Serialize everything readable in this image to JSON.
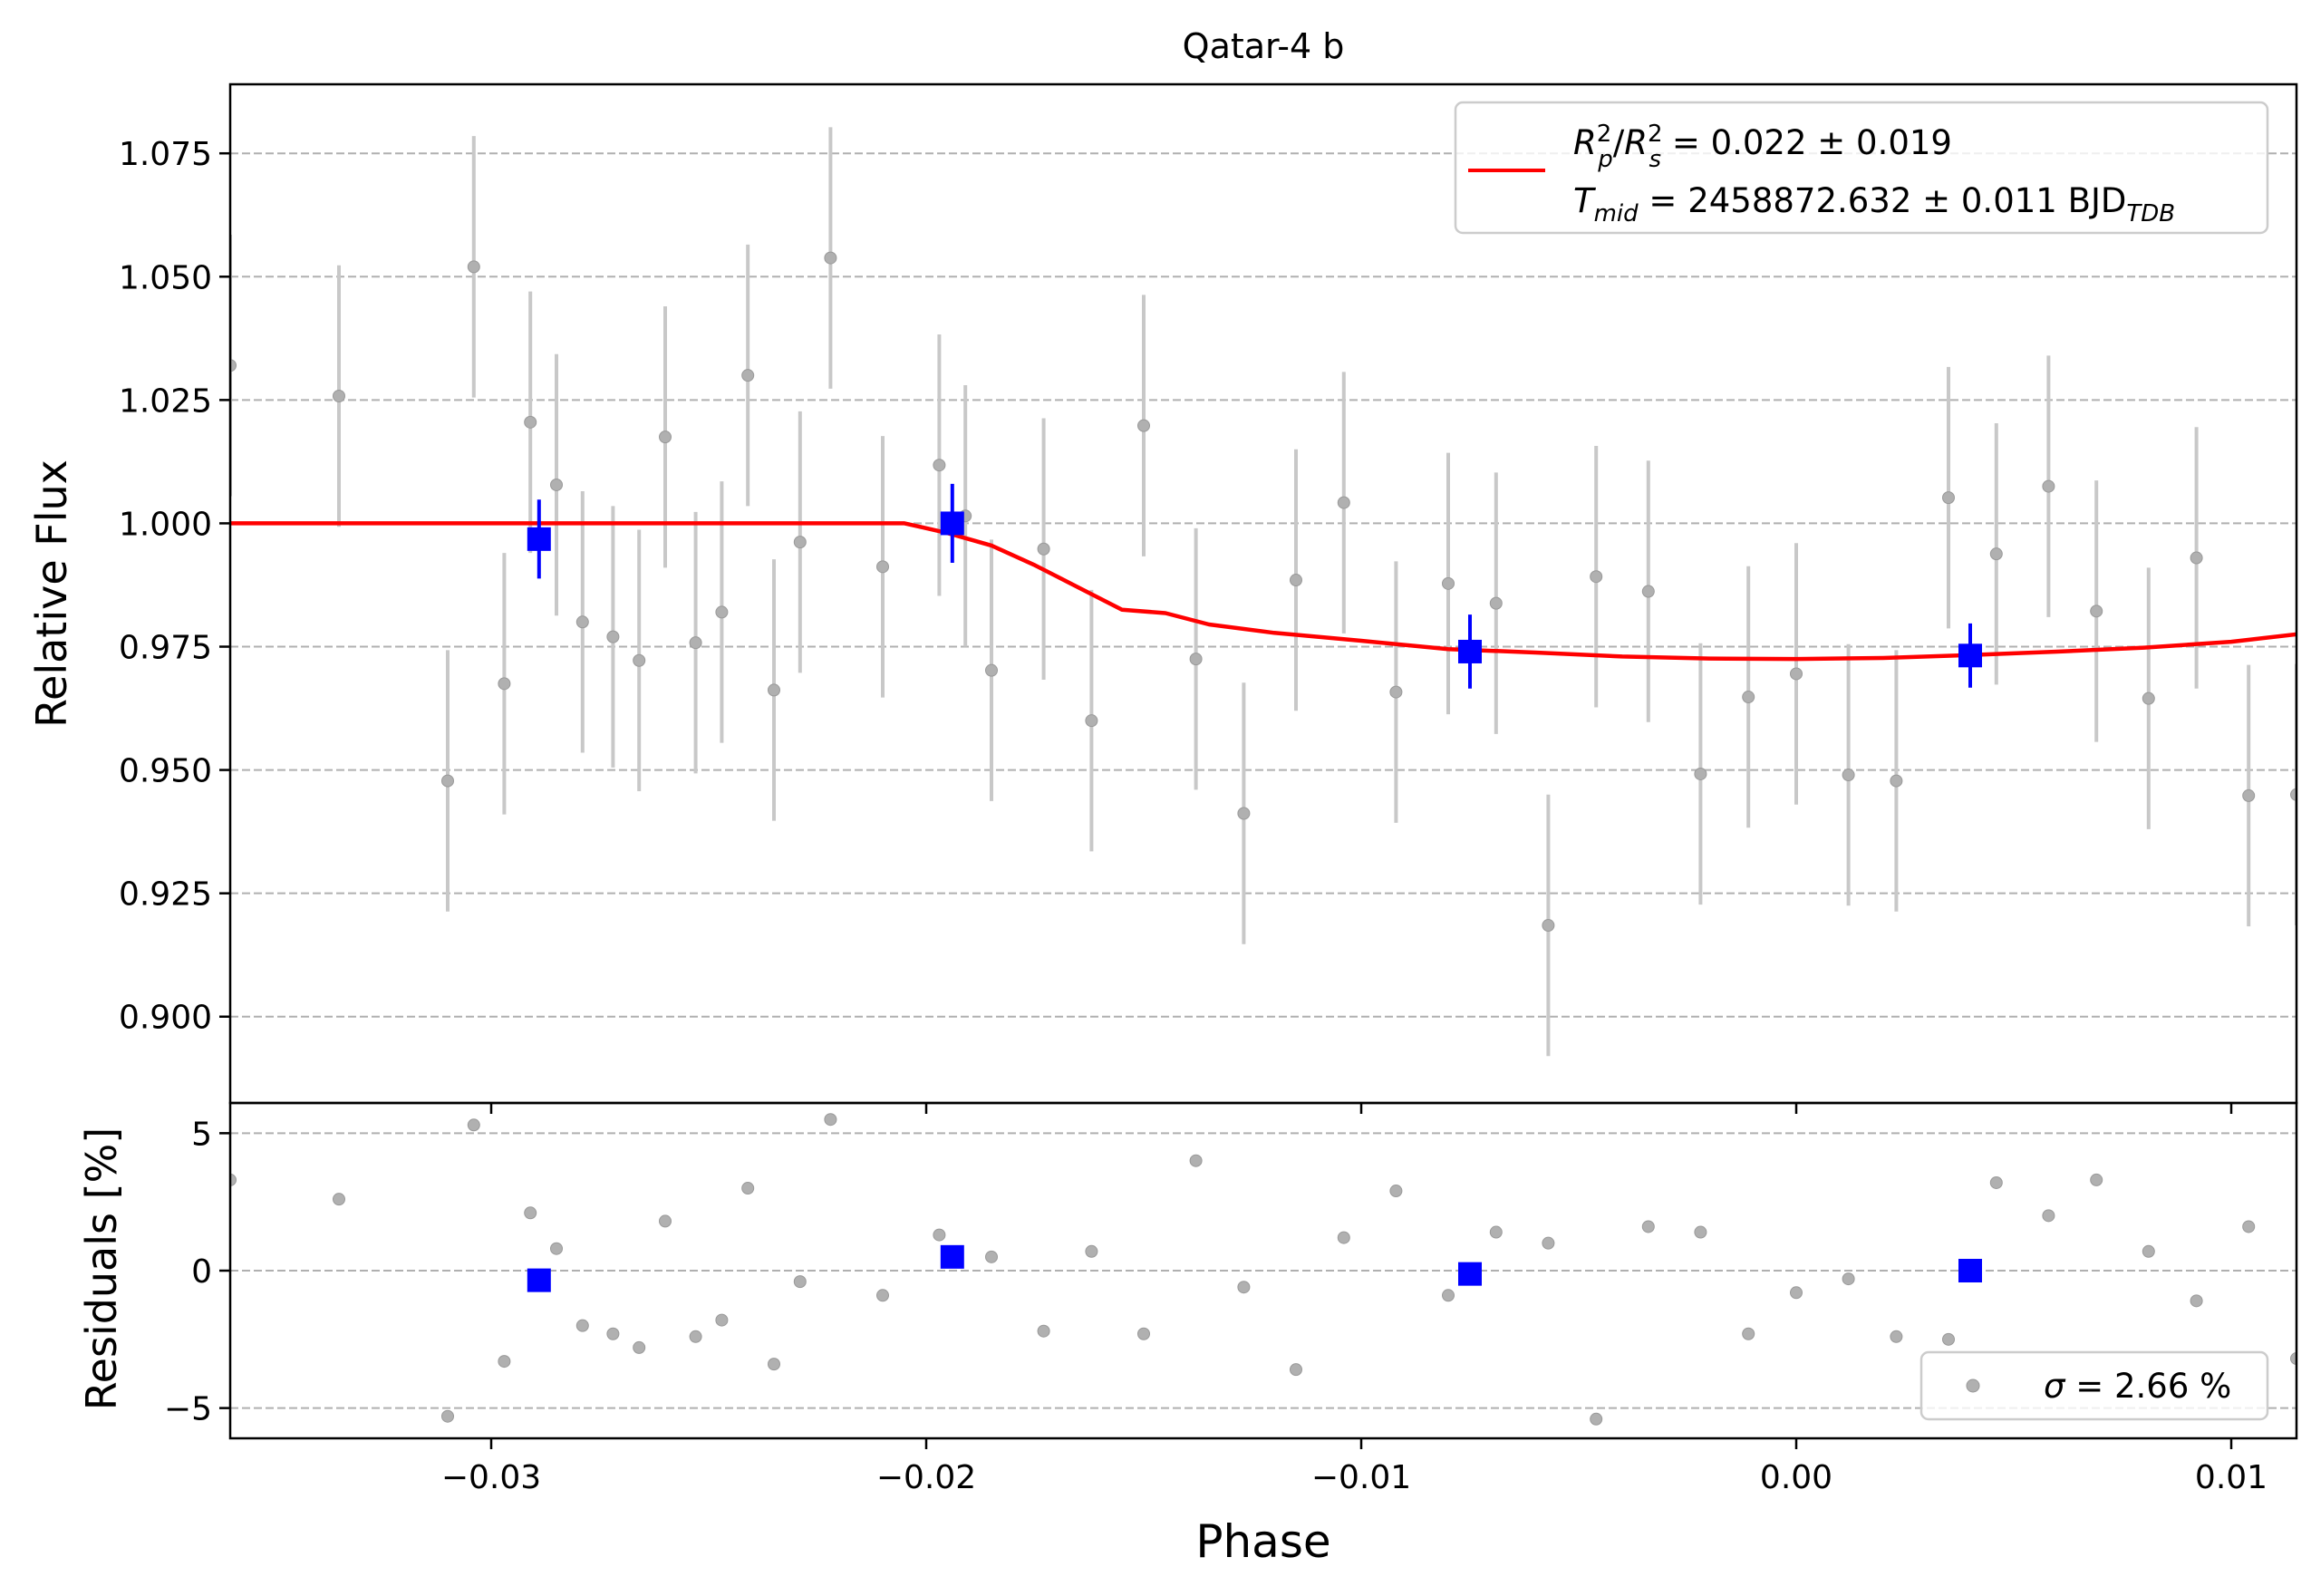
{
  "chart_data": [
    {
      "type": "scatter",
      "title": "Qatar-4 b",
      "xlabel": "",
      "ylabel": "Relative Flux",
      "xlim": [
        -0.036,
        0.0115
      ],
      "ylim": [
        0.8825,
        1.089
      ],
      "grid": "y-dashed",
      "xticks": [
        -0.03,
        -0.02,
        -0.01,
        0.0,
        0.01
      ],
      "xtick_labels": [
        "",
        "",
        "",
        "",
        ""
      ],
      "yticks": [
        0.9,
        0.925,
        0.95,
        0.975,
        1.0,
        1.025,
        1.05,
        1.075
      ],
      "ytick_labels": [
        "0.900",
        "0.925",
        "0.950",
        "0.975",
        "1.000",
        "1.025",
        "1.050",
        "1.075"
      ],
      "legend": {
        "position": "top-right",
        "model_label_line1": "R²p/R²s = 0.022 ± 0.019",
        "model_label_line2": "Tmid = 2458872.632 ± 0.011 BJDTDB",
        "r_sym": "R",
        "p_sub": "p",
        "s_sub": "s",
        "sq": "2",
        "rp_value": " = 0.022 ± 0.019",
        "t_sym": "T",
        "mid_sub": "mid",
        "tmid_value": " = 2458872.632 ± 0.011 BJD",
        "tdb_sub": "TDB"
      },
      "series": [
        {
          "style": "data",
          "color": "#b0b0b0",
          "x": [
            -0.036,
            -0.0335,
            -0.031,
            -0.0304,
            -0.0297,
            -0.0291,
            -0.0285,
            -0.0279,
            -0.0272,
            -0.0266,
            -0.026,
            -0.0253,
            -0.0247,
            -0.0241,
            -0.0235,
            -0.0229,
            -0.0222,
            -0.021,
            -0.0197,
            -0.0191,
            -0.0185,
            -0.0173,
            -0.0162,
            -0.015,
            -0.0138,
            -0.0127,
            -0.0115,
            -0.0104,
            -0.0092,
            -0.008,
            -0.0069,
            -0.0057,
            -0.0046,
            -0.0034,
            -0.0022,
            -0.0011,
            0.0,
            0.0012,
            0.0023,
            0.0035,
            0.0046,
            0.0058,
            0.0069,
            0.0081,
            0.0092,
            0.0104,
            0.0115
          ],
          "y": [
            1.032,
            1.0258,
            0.9478,
            1.052,
            0.9675,
            1.0205,
            1.0078,
            0.98,
            0.977,
            0.9722,
            1.0175,
            0.9758,
            0.982,
            1.03,
            0.9662,
            0.9962,
            1.0538,
            0.9912,
            1.0118,
            1.0015,
            0.9702,
            0.9948,
            0.96,
            1.0198,
            0.9725,
            0.9412,
            0.9885,
            1.0042,
            0.9658,
            0.9878,
            0.9838,
            0.9185,
            0.9892,
            0.9862,
            0.9492,
            0.9648,
            0.9695,
            0.949,
            0.9478,
            1.0052,
            0.9938,
            1.0075,
            0.9822,
            0.9645,
            0.993,
            0.9448,
            0.945
          ],
          "yerr": 0.0265
        },
        {
          "style": "binned",
          "color": "#0000ff",
          "x": [
            -0.0289,
            -0.0194,
            -0.0075,
            0.004
          ],
          "y": [
            0.9968,
            1.0,
            0.974,
            0.9732
          ],
          "yerr": [
            0.008,
            0.008,
            0.0075,
            0.0065
          ]
        },
        {
          "style": "model",
          "color": "#ff0000",
          "x": [
            -0.036,
            -0.0205,
            -0.0195,
            -0.0185,
            -0.0175,
            -0.0165,
            -0.0155,
            -0.0145,
            -0.0135,
            -0.012,
            -0.01,
            -0.008,
            -0.006,
            -0.004,
            -0.002,
            0.0,
            0.002,
            0.004,
            0.006,
            0.008,
            0.01,
            0.0115
          ],
          "y": [
            1.0,
            1.0,
            0.998,
            0.9955,
            0.9915,
            0.987,
            0.9825,
            0.9818,
            0.9795,
            0.9778,
            0.9762,
            0.9745,
            0.9738,
            0.973,
            0.9726,
            0.9725,
            0.9727,
            0.9733,
            0.974,
            0.9748,
            0.976,
            0.9775
          ]
        }
      ]
    },
    {
      "type": "scatter",
      "xlabel": "Phase",
      "ylabel": "Residuals [%]",
      "xlim": [
        -0.036,
        0.0115
      ],
      "ylim": [
        -6.1,
        6.1
      ],
      "grid": "y-dashed",
      "xticks": [
        -0.03,
        -0.02,
        -0.01,
        0.0,
        0.01
      ],
      "xtick_labels": [
        "−0.03",
        "−0.02",
        "−0.01",
        "0.00",
        "0.01"
      ],
      "yticks": [
        -5,
        0,
        5
      ],
      "ytick_labels": [
        "−5",
        "0",
        "5"
      ],
      "legend": {
        "position": "bottom-right",
        "sigma_sym": "σ",
        "sigma_value": " = 2.66 %"
      },
      "series": [
        {
          "style": "data",
          "color": "#b0b0b0",
          "x": [
            -0.036,
            -0.0335,
            -0.031,
            -0.0304,
            -0.0297,
            -0.0291,
            -0.0285,
            -0.0279,
            -0.0272,
            -0.0266,
            -0.026,
            -0.0253,
            -0.0247,
            -0.0241,
            -0.0235,
            -0.0229,
            -0.0222,
            -0.021,
            -0.0197,
            -0.0185,
            -0.0162,
            -0.0173,
            -0.015,
            -0.0138,
            -0.0127,
            -0.0115,
            -0.0104,
            -0.0092,
            -0.008,
            -0.0069,
            -0.0057,
            -0.0046,
            -0.0034,
            -0.0022,
            -0.0011,
            0.0,
            0.0012,
            0.0023,
            0.0035,
            0.0046,
            0.0058,
            0.0069,
            0.0081,
            0.0092,
            0.0104,
            0.0115
          ],
          "y": [
            3.3,
            2.6,
            -5.3,
            5.3,
            -3.3,
            2.1,
            0.8,
            -2.0,
            -2.3,
            -2.8,
            1.8,
            -2.4,
            -1.8,
            3.0,
            -3.4,
            -0.4,
            5.5,
            -0.9,
            1.3,
            0.5,
            0.7,
            -2.2,
            -2.3,
            4.0,
            -0.6,
            -3.6,
            1.2,
            2.9,
            -0.9,
            1.4,
            1.0,
            -5.4,
            1.6,
            1.4,
            -2.3,
            -0.8,
            -0.3,
            -2.4,
            -2.5,
            3.2,
            2.0,
            3.3,
            0.7,
            -1.1,
            1.6,
            -3.2
          ]
        },
        {
          "style": "binned",
          "color": "#0000ff",
          "x": [
            -0.0289,
            -0.0194,
            -0.0075,
            0.004
          ],
          "y": [
            -0.35,
            0.5,
            -0.12,
            0.0
          ]
        }
      ]
    }
  ]
}
